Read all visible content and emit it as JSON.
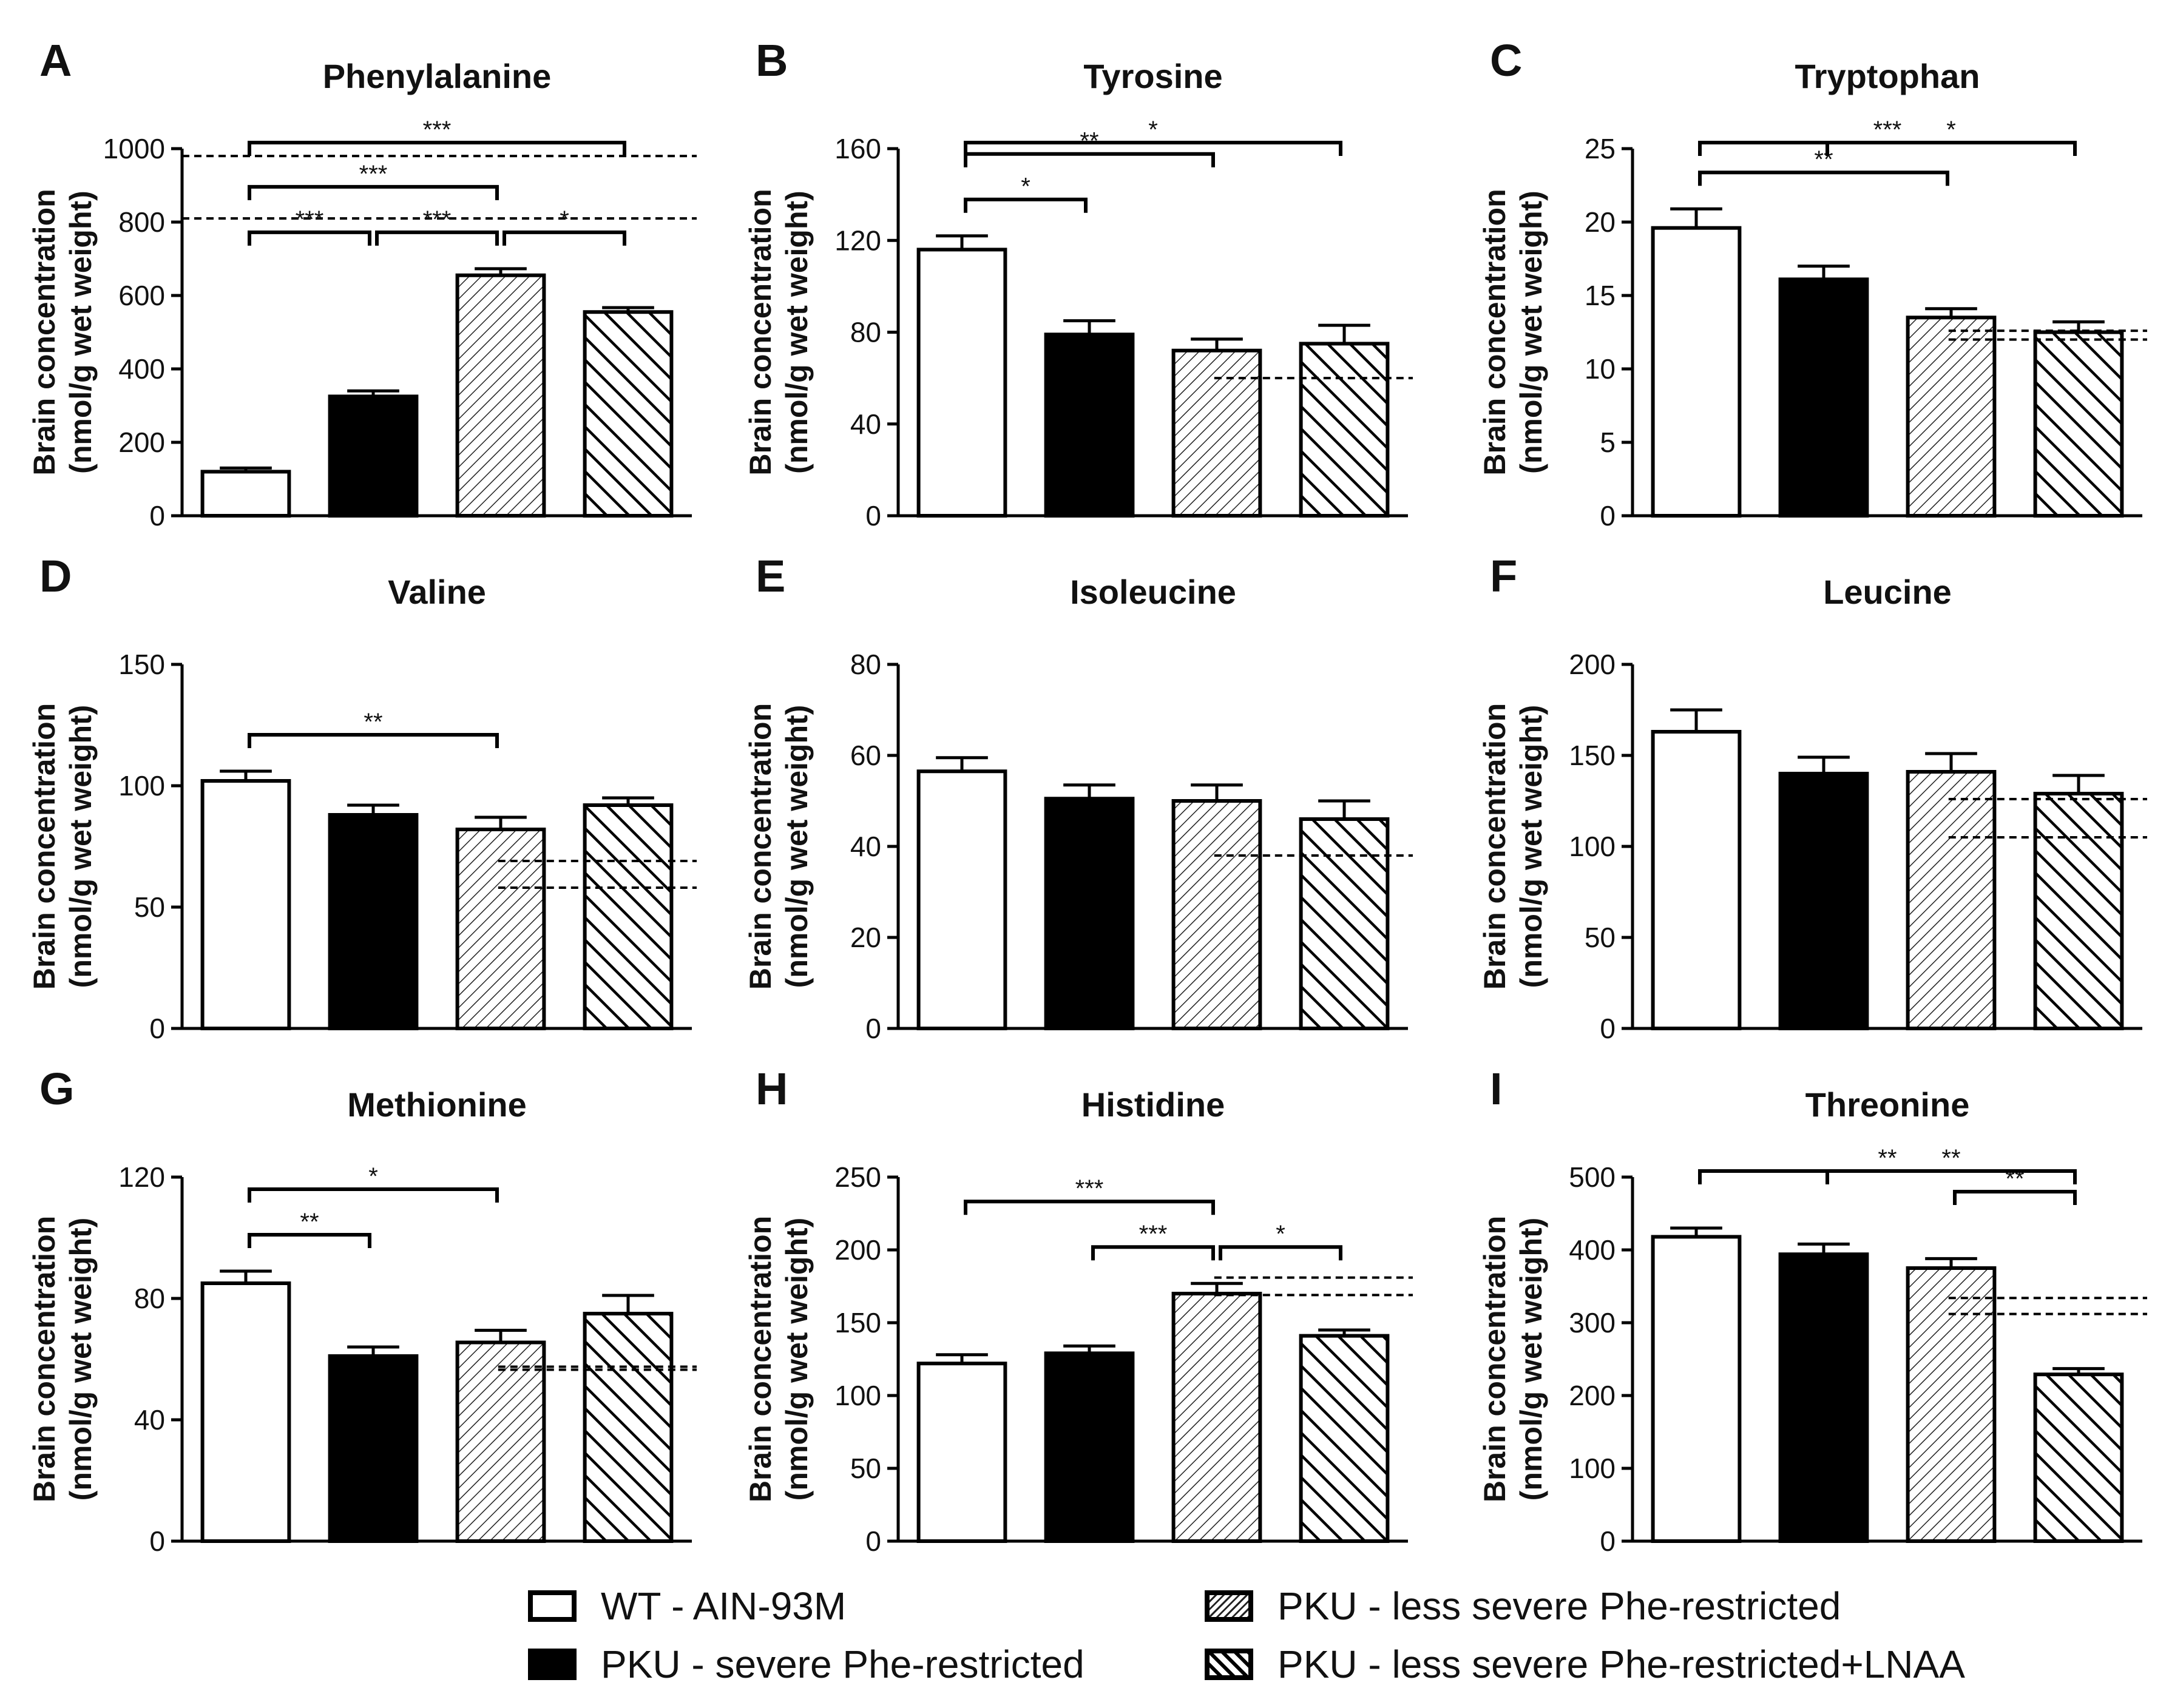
{
  "legend": [
    {
      "label": "WT - AIN-93M",
      "group": "wt"
    },
    {
      "label": "PKU - severe Phe-restricted",
      "group": "sev"
    },
    {
      "label": "PKU - less severe Phe-restricted",
      "group": "less"
    },
    {
      "label": "PKU - less severe Phe-restricted+LNAA",
      "group": "lnaa"
    }
  ],
  "chart_data": [
    {
      "letter": "A",
      "type": "bar",
      "title": "Phenylalanine",
      "ylabel": [
        "Brain concentration",
        "(nmol/g wet weight)"
      ],
      "ylim": [
        0,
        1000
      ],
      "yticks": [
        0,
        200,
        400,
        600,
        800,
        1000
      ],
      "values": [
        120,
        325,
        655,
        555
      ],
      "errors": [
        10,
        15,
        18,
        12
      ],
      "ref_lines": [
        810,
        980
      ],
      "significance": [
        {
          "from": 0,
          "to": 2,
          "label": "***"
        },
        {
          "from": 0,
          "to": 3,
          "label": "***"
        },
        {
          "from": 0,
          "to": 1,
          "label": "***"
        },
        {
          "from": 1,
          "to": 2,
          "label": "***"
        },
        {
          "from": 2,
          "to": 3,
          "label": "*"
        }
      ]
    },
    {
      "letter": "B",
      "type": "bar",
      "title": "Tyrosine",
      "ylabel": [
        "Brain concentration",
        "(nmol/g wet weight)"
      ],
      "ylim": [
        0,
        160
      ],
      "yticks": [
        0,
        40,
        80,
        120,
        160
      ],
      "values": [
        116,
        79,
        72,
        75
      ],
      "errors": [
        6,
        6,
        5,
        8
      ],
      "ref_lines": [
        60
      ],
      "significance": [
        {
          "from": 0,
          "to": 3,
          "label": "*"
        },
        {
          "from": 0,
          "to": 2,
          "label": "**"
        },
        {
          "from": 0,
          "to": 1,
          "label": "*"
        }
      ]
    },
    {
      "letter": "C",
      "type": "bar",
      "title": "Tryptophan",
      "ylabel": [
        "Brain concentration",
        "(nmol/g wet weight)"
      ],
      "ylim": [
        0,
        25
      ],
      "yticks": [
        0,
        5,
        10,
        15,
        20,
        25
      ],
      "values": [
        19.6,
        16.1,
        13.5,
        12.5
      ],
      "errors": [
        1.3,
        0.9,
        0.6,
        0.7
      ],
      "ref_lines": [
        12.0,
        12.6
      ],
      "significance": [
        {
          "from": 0,
          "to": 3,
          "label": "***"
        },
        {
          "from": 0,
          "to": 2,
          "label": "**"
        },
        {
          "from": 1,
          "to": 3,
          "label": "*"
        }
      ]
    },
    {
      "letter": "D",
      "type": "bar",
      "title": "Valine",
      "ylabel": [
        "Brain concentration",
        "(nmol/g wet weight)"
      ],
      "ylim": [
        0,
        150
      ],
      "yticks": [
        0,
        50,
        100,
        150
      ],
      "values": [
        102,
        88,
        82,
        92
      ],
      "errors": [
        4,
        4,
        5,
        3
      ],
      "ref_lines": [
        58,
        69
      ],
      "significance": [
        {
          "from": 0,
          "to": 2,
          "label": "**"
        }
      ]
    },
    {
      "letter": "E",
      "type": "bar",
      "title": "Isoleucine",
      "ylabel": [
        "Brain concentration",
        "(nmol/g wet weight)"
      ],
      "ylim": [
        0,
        80
      ],
      "yticks": [
        0,
        20,
        40,
        60,
        80
      ],
      "values": [
        56.5,
        50.5,
        50,
        46
      ],
      "errors": [
        3,
        3,
        3.5,
        4
      ],
      "ref_lines": [
        38
      ],
      "significance": []
    },
    {
      "letter": "F",
      "type": "bar",
      "title": "Leucine",
      "ylabel": [
        "Brain concentration",
        "(nmol/g wet weight)"
      ],
      "ylim": [
        0,
        200
      ],
      "yticks": [
        0,
        50,
        100,
        150,
        200
      ],
      "values": [
        163,
        140,
        141,
        129
      ],
      "errors": [
        12,
        9,
        10,
        10
      ],
      "ref_lines": [
        105,
        126
      ],
      "significance": []
    },
    {
      "letter": "G",
      "type": "bar",
      "title": "Methionine",
      "ylabel": [
        "Brain concentration",
        "(nmol/g wet weight)"
      ],
      "ylim": [
        0,
        120
      ],
      "yticks": [
        0,
        40,
        80,
        120
      ],
      "values": [
        85,
        61,
        65.5,
        75
      ],
      "errors": [
        4,
        3,
        4,
        6
      ],
      "ref_lines": [
        56.5,
        57.5
      ],
      "significance": [
        {
          "from": 0,
          "to": 2,
          "label": "*"
        },
        {
          "from": 0,
          "to": 1,
          "label": "**"
        }
      ]
    },
    {
      "letter": "H",
      "type": "bar",
      "title": "Histidine",
      "ylabel": [
        "Brain concentration",
        "(nmol/g wet weight)"
      ],
      "ylim": [
        0,
        250
      ],
      "yticks": [
        0,
        50,
        100,
        150,
        200,
        250
      ],
      "values": [
        122,
        129,
        170,
        141
      ],
      "errors": [
        6,
        5,
        7,
        4
      ],
      "ref_lines": [
        169,
        181
      ],
      "significance": [
        {
          "from": 0,
          "to": 2,
          "label": "***"
        },
        {
          "from": 1,
          "to": 2,
          "label": "***"
        },
        {
          "from": 2,
          "to": 3,
          "label": "*"
        }
      ]
    },
    {
      "letter": "I",
      "type": "bar",
      "title": "Threonine",
      "ylabel": [
        "Brain concentration",
        "(nmol/g wet weight)"
      ],
      "ylim": [
        0,
        500
      ],
      "yticks": [
        0,
        100,
        200,
        300,
        400,
        500
      ],
      "values": [
        418,
        394,
        375,
        229
      ],
      "errors": [
        12,
        14,
        13,
        8
      ],
      "ref_lines": [
        312,
        334
      ],
      "significance": [
        {
          "from": 0,
          "to": 3,
          "label": "**"
        },
        {
          "from": 1,
          "to": 3,
          "label": "**"
        },
        {
          "from": 2,
          "to": 3,
          "label": "**"
        }
      ]
    }
  ]
}
